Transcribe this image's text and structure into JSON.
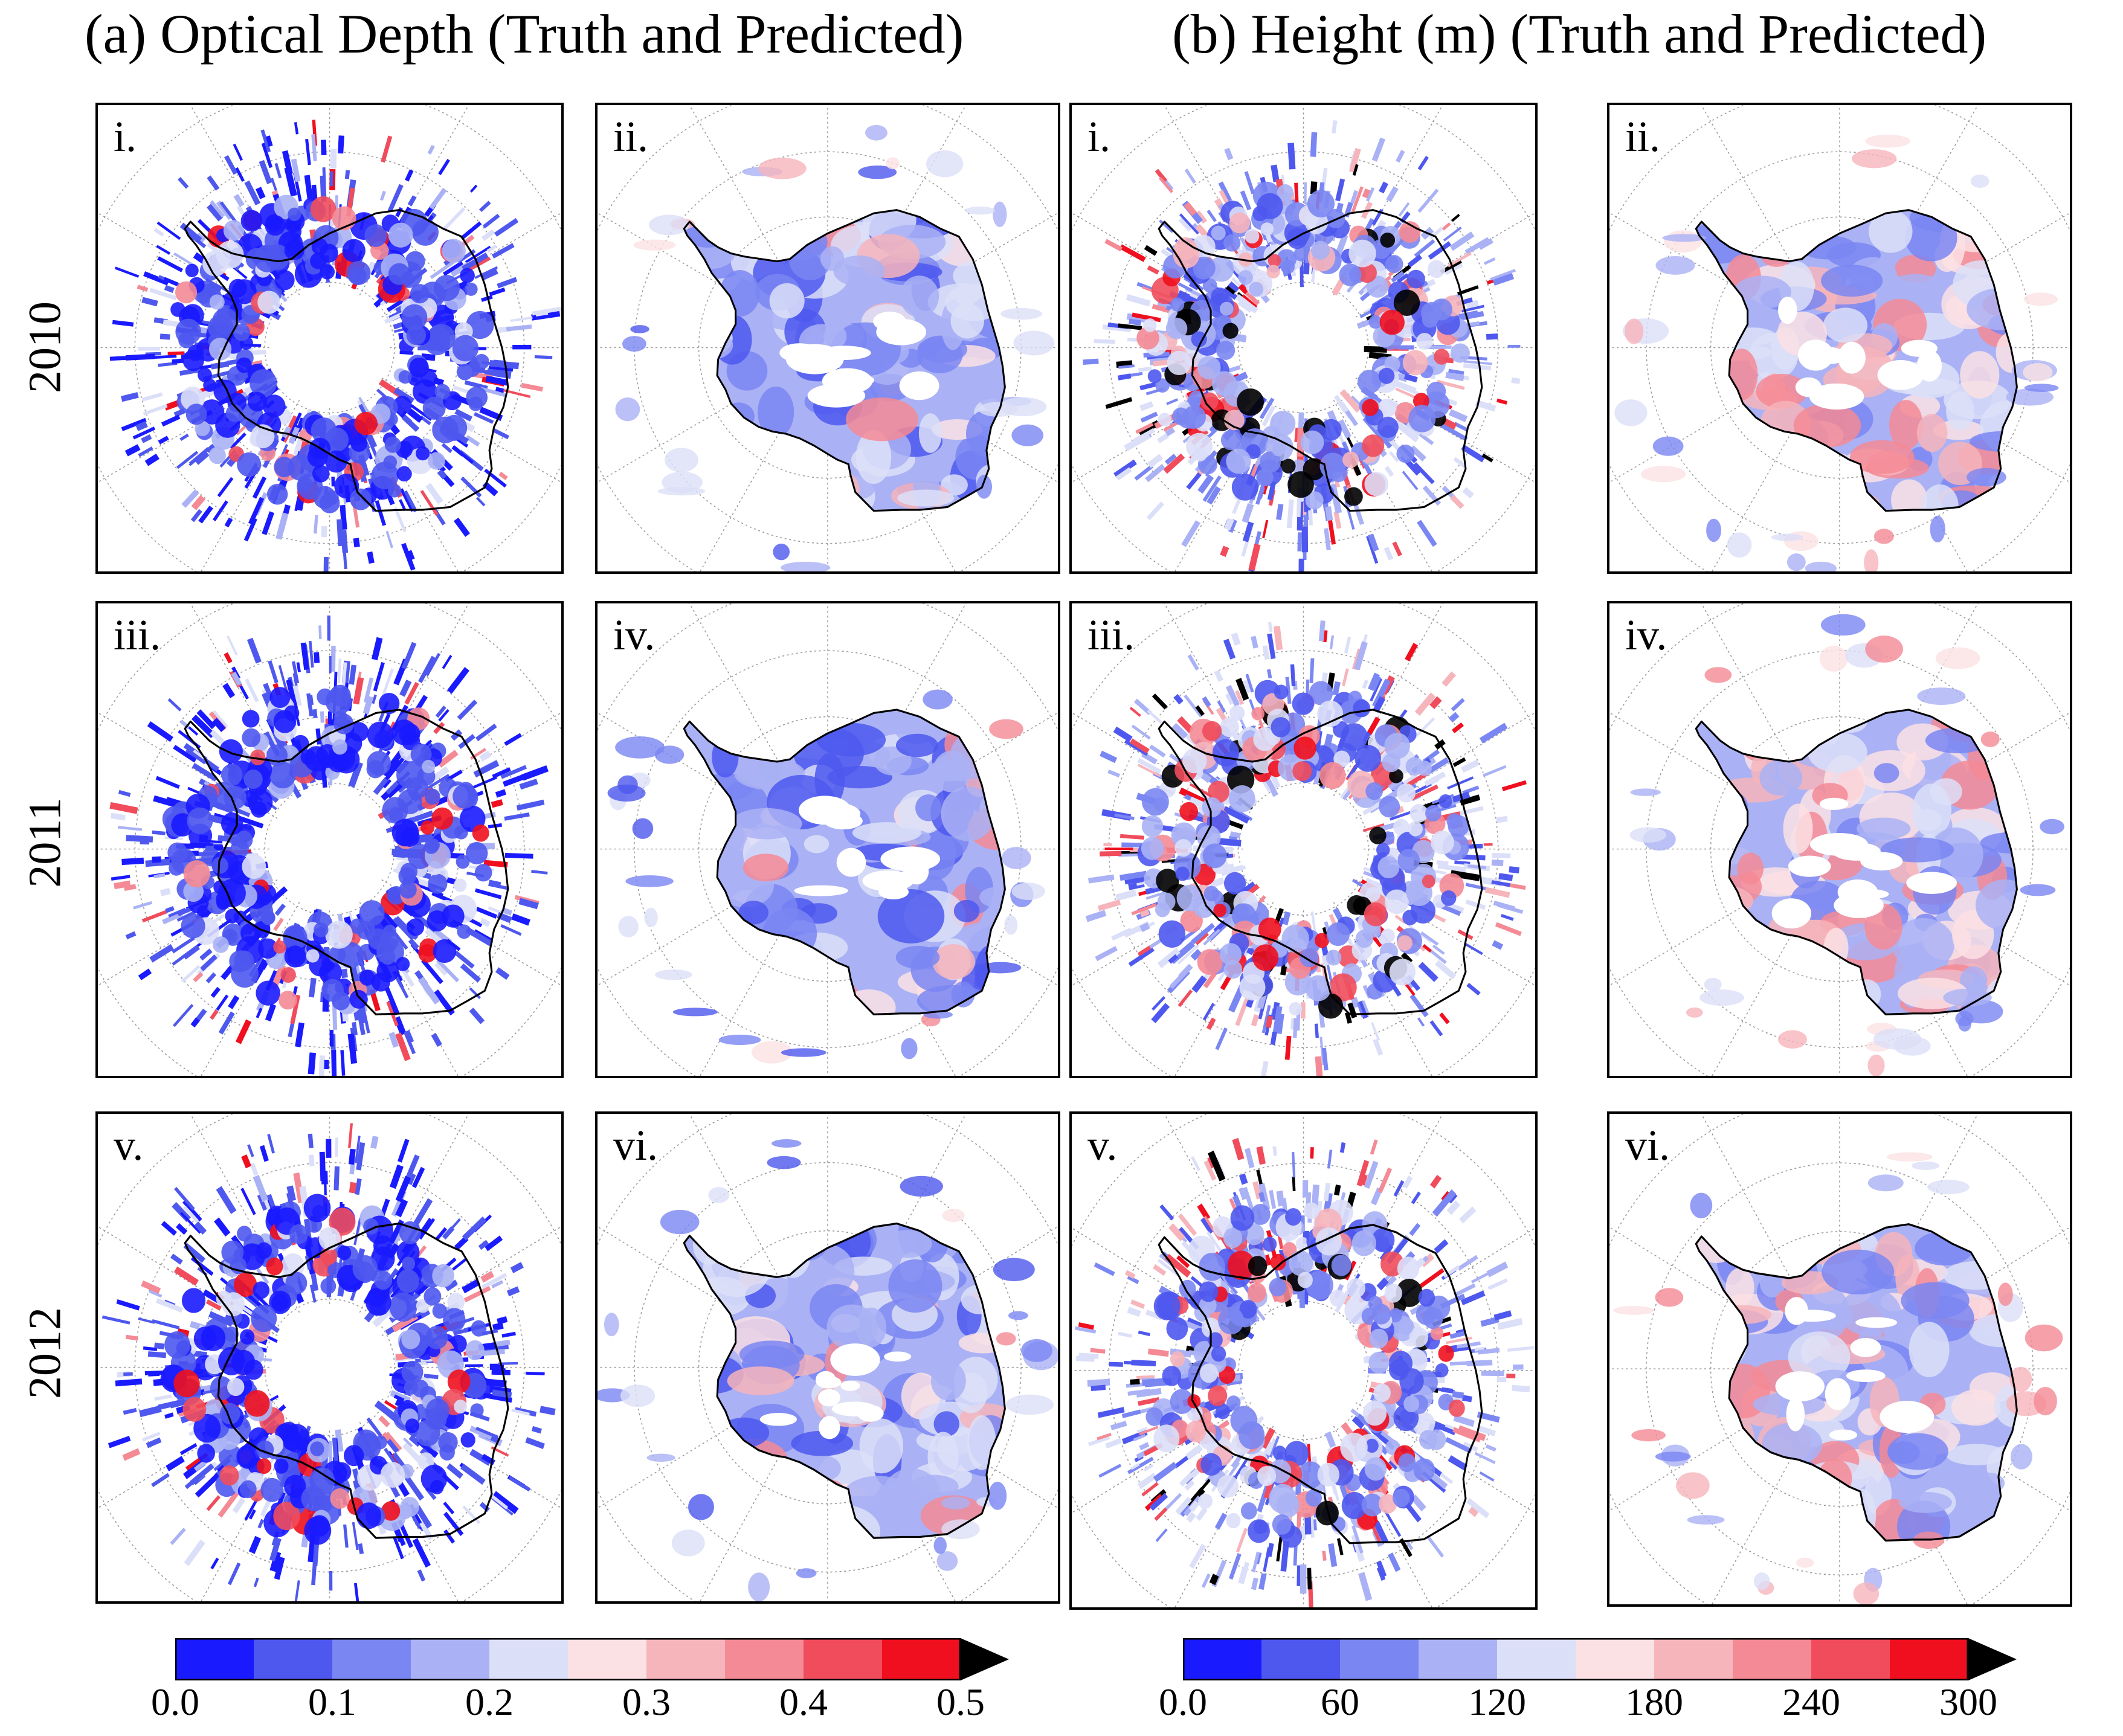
{
  "titles": {
    "optical": "(a) Optical Depth (Truth and Predicted)",
    "height": "(b) Height (m) (Truth and Predicted)"
  },
  "years": [
    "2010",
    "2011",
    "2012"
  ],
  "panel_labels": {
    "optical": [
      "i.",
      "ii.",
      "iii.",
      "iv.",
      "v.",
      "vi."
    ],
    "height": [
      "i.",
      "ii.",
      "iii.",
      "iv.",
      "v.",
      "vi."
    ]
  },
  "panel_roles": [
    "truth",
    "predicted"
  ],
  "colorbars": {
    "optical": {
      "min": 0.0,
      "max": 0.5,
      "ticks": [
        "0.0",
        "0.1",
        "0.2",
        "0.3",
        "0.4",
        "0.5"
      ],
      "extend": "max"
    },
    "height": {
      "min": 0,
      "max": 300,
      "ticks": [
        "0.0",
        "60",
        "120",
        "180",
        "240",
        "300"
      ],
      "extend": "max"
    }
  },
  "colormap": [
    "#1a1aff",
    "#4e58ee",
    "#7a86f2",
    "#aab2f5",
    "#dcdff8",
    "#fbe1e4",
    "#f6b4bb",
    "#f48a95",
    "#f04c5c",
    "#f00f1e"
  ],
  "extend_color": "#000000"
}
